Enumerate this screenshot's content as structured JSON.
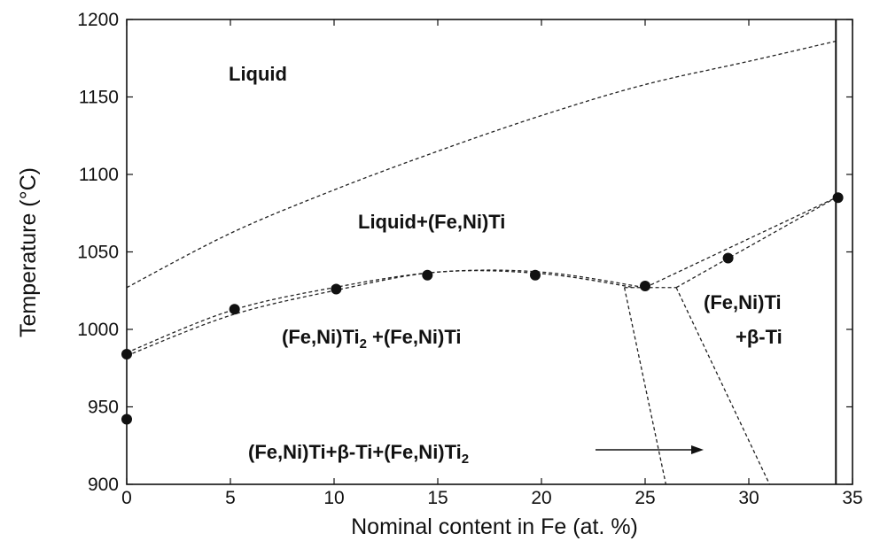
{
  "chart_data": {
    "type": "scatter",
    "title": "",
    "xlabel": "Nominal content in Fe (at. %)",
    "ylabel": "Temperature (°C)",
    "xlim": [
      0,
      35
    ],
    "ylim": [
      900,
      1200
    ],
    "xticks": [
      0,
      5,
      10,
      15,
      20,
      25,
      30,
      35
    ],
    "yticks": [
      900,
      950,
      1000,
      1050,
      1100,
      1150,
      1200
    ],
    "grid": false,
    "points": [
      {
        "x": 0,
        "y": 984
      },
      {
        "x": 0,
        "y": 942
      },
      {
        "x": 5.2,
        "y": 1013
      },
      {
        "x": 10.1,
        "y": 1026
      },
      {
        "x": 14.5,
        "y": 1035
      },
      {
        "x": 19.7,
        "y": 1035
      },
      {
        "x": 25,
        "y": 1028
      },
      {
        "x": 29,
        "y": 1046
      },
      {
        "x": 34.3,
        "y": 1085
      }
    ],
    "boundaries": [
      {
        "name": "liquidus",
        "style": "dashed",
        "x": [
          0,
          5,
          10,
          15,
          20,
          25,
          30,
          34.2
        ],
        "y": [
          1027,
          1062,
          1090,
          1115,
          1138,
          1158,
          1173,
          1186
        ]
      },
      {
        "name": "solidus-a",
        "style": "dashed",
        "x": [
          0,
          5,
          10,
          15,
          20,
          25
        ],
        "y": [
          985,
          1012,
          1027,
          1037,
          1037,
          1027
        ]
      },
      {
        "name": "solidus-b",
        "style": "dashed",
        "x": [
          0,
          5,
          10,
          15,
          20,
          24.5
        ],
        "y": [
          983,
          1009,
          1025,
          1037,
          1036,
          1027
        ]
      },
      {
        "name": "eutectic-to-tiedge-a",
        "style": "dashed",
        "x": [
          25,
          34.2
        ],
        "y": [
          1027,
          1085
        ]
      },
      {
        "name": "eutectic-to-tiedge-b",
        "style": "dashed",
        "x": [
          26.5,
          34.2
        ],
        "y": [
          1027,
          1085
        ]
      },
      {
        "name": "eutectoid-plateau",
        "style": "dashed",
        "x": [
          24,
          26.5
        ],
        "y": [
          1027,
          1027
        ]
      },
      {
        "name": "solvus-left",
        "style": "dashed",
        "x": [
          24,
          26
        ],
        "y": [
          1027,
          900
        ]
      },
      {
        "name": "solvus-right",
        "style": "dashed",
        "x": [
          26.5,
          31
        ],
        "y": [
          1027,
          900
        ]
      },
      {
        "name": "ti-edge",
        "style": "solid",
        "x": [
          34.2,
          34.2
        ],
        "y": [
          900,
          1200
        ]
      }
    ],
    "region_labels": {
      "liquid": "Liquid",
      "liquid_fe_ni_ti": "Liquid+(Fe,Ni)Ti",
      "fe_ni_ti2_plus": "(Fe,Ni)Ti",
      "fe_ni_ti2_main": "(Fe,Ni)Ti",
      "fe_ni_ti2_sub": "2",
      "fe_ni_ti2_rest": " +(Fe,Ni)Ti",
      "fe_ni_ti_line1": "(Fe,Ni)Ti",
      "fe_ni_ti_line2": "+β-Ti",
      "three_phase_main": "(Fe,Ni)Ti+β-Ti+(Fe,Ni)Ti",
      "three_phase_sub": "2"
    }
  }
}
